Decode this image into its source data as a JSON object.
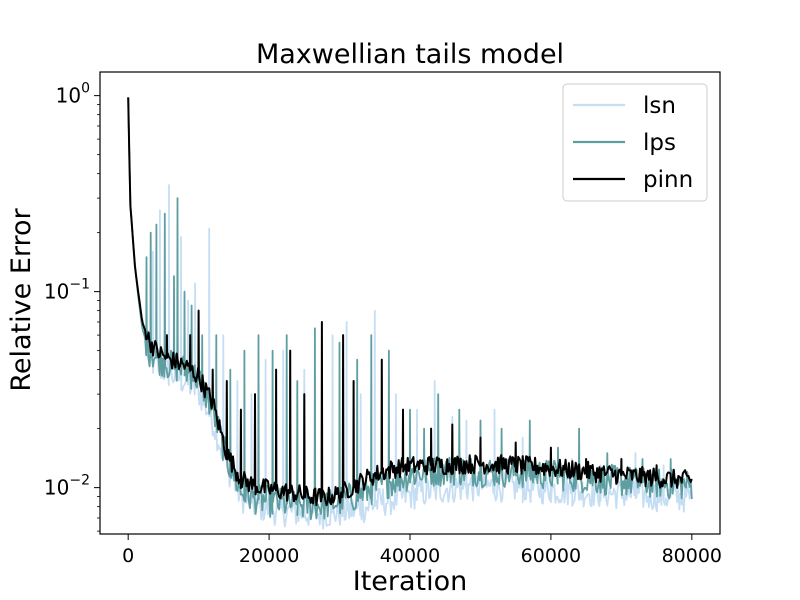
{
  "chart_data": {
    "type": "line",
    "title": "Maxwellian tails model",
    "xlabel": "Iteration",
    "ylabel": "Relative Error",
    "xlim": [
      -4000,
      84000
    ],
    "ylim": [
      0.0058,
      1.32
    ],
    "yscale": "log",
    "grid": false,
    "legend_position": "top-right",
    "xticks": [
      {
        "value": 0,
        "label": "0"
      },
      {
        "value": 20000,
        "label": "20000"
      },
      {
        "value": 40000,
        "label": "40000"
      },
      {
        "value": 60000,
        "label": "60000"
      },
      {
        "value": 80000,
        "label": "80000"
      }
    ],
    "yticks": [
      {
        "value": 0.01,
        "base": "10",
        "exp": "−2"
      },
      {
        "value": 0.1,
        "base": "10",
        "exp": "−1"
      },
      {
        "value": 1,
        "base": "10",
        "exp": "0"
      }
    ],
    "series": [
      {
        "name": "lsn",
        "color": "#c6def3",
        "x": [
          0,
          300,
          600,
          1000,
          1500,
          2000,
          2500,
          3000,
          4000,
          5000,
          6000,
          8000,
          10000,
          12000,
          14000,
          16000,
          18000,
          20000,
          22000,
          24000,
          26000,
          28000,
          30000,
          32000,
          34000,
          36000,
          38000,
          40000,
          42000,
          44000,
          46000,
          48000,
          50000,
          54000,
          58000,
          62000,
          66000,
          70000,
          74000,
          78000,
          80000
        ],
        "values": [
          0.98,
          0.28,
          0.2,
          0.13,
          0.09,
          0.065,
          0.055,
          0.045,
          0.042,
          0.04,
          0.038,
          0.035,
          0.031,
          0.022,
          0.013,
          0.009,
          0.0082,
          0.0078,
          0.0076,
          0.0075,
          0.0074,
          0.0074,
          0.0075,
          0.0077,
          0.008,
          0.0085,
          0.0088,
          0.0092,
          0.0095,
          0.0098,
          0.01,
          0.0101,
          0.0102,
          0.0101,
          0.0099,
          0.0097,
          0.0095,
          0.0093,
          0.0091,
          0.009,
          0.0089
        ],
        "spikes": [
          [
            3500,
            0.16
          ],
          [
            4500,
            0.26
          ],
          [
            5800,
            0.35
          ],
          [
            7500,
            0.19
          ],
          [
            8500,
            0.09
          ],
          [
            9500,
            0.11
          ],
          [
            11500,
            0.21
          ],
          [
            13500,
            0.06
          ],
          [
            15500,
            0.035
          ],
          [
            17500,
            0.03
          ],
          [
            19500,
            0.045
          ],
          [
            22000,
            0.05
          ],
          [
            25000,
            0.04
          ],
          [
            29000,
            0.06
          ],
          [
            31000,
            0.07
          ],
          [
            33000,
            0.03
          ],
          [
            35000,
            0.08
          ],
          [
            38000,
            0.03
          ],
          [
            41000,
            0.025
          ],
          [
            43500,
            0.035
          ],
          [
            46000,
            0.023
          ],
          [
            48000,
            0.022
          ],
          [
            52000,
            0.025
          ],
          [
            56000,
            0.018
          ],
          [
            60000,
            0.016
          ],
          [
            63000,
            0.014
          ],
          [
            67000,
            0.013
          ],
          [
            72000,
            0.015
          ],
          [
            76000,
            0.013
          ]
        ]
      },
      {
        "name": "lps",
        "color": "#5f9ea0",
        "x": [
          0,
          300,
          600,
          1000,
          1500,
          2000,
          2500,
          3000,
          4000,
          5000,
          6000,
          8000,
          10000,
          12000,
          14000,
          16000,
          18000,
          20000,
          22000,
          24000,
          26000,
          28000,
          30000,
          32000,
          34000,
          36000,
          38000,
          40000,
          42000,
          44000,
          46000,
          48000,
          50000,
          54000,
          58000,
          62000,
          66000,
          70000,
          74000,
          78000,
          80000
        ],
        "values": [
          0.98,
          0.28,
          0.2,
          0.13,
          0.09,
          0.065,
          0.057,
          0.05,
          0.046,
          0.044,
          0.042,
          0.04,
          0.036,
          0.025,
          0.014,
          0.0095,
          0.0088,
          0.0085,
          0.0083,
          0.0082,
          0.0081,
          0.0082,
          0.0085,
          0.009,
          0.0096,
          0.0103,
          0.011,
          0.0116,
          0.012,
          0.0122,
          0.0123,
          0.0122,
          0.0121,
          0.012,
          0.0118,
          0.0115,
          0.0111,
          0.0108,
          0.0106,
          0.0104,
          0.0103
        ],
        "spikes": [
          [
            2600,
            0.15
          ],
          [
            3200,
            0.2
          ],
          [
            4000,
            0.22
          ],
          [
            5200,
            0.25
          ],
          [
            6500,
            0.12
          ],
          [
            7000,
            0.3
          ],
          [
            8000,
            0.1
          ],
          [
            9000,
            0.085
          ],
          [
            10500,
            0.06
          ],
          [
            12500,
            0.06
          ],
          [
            14500,
            0.04
          ],
          [
            16500,
            0.05
          ],
          [
            18500,
            0.06
          ],
          [
            20500,
            0.05
          ],
          [
            22500,
            0.06
          ],
          [
            24000,
            0.035
          ],
          [
            26500,
            0.065
          ],
          [
            30000,
            0.055
          ],
          [
            32500,
            0.045
          ],
          [
            34500,
            0.06
          ],
          [
            37000,
            0.05
          ],
          [
            40000,
            0.025
          ],
          [
            42000,
            0.02
          ],
          [
            44000,
            0.03
          ],
          [
            47000,
            0.025
          ],
          [
            50000,
            0.022
          ],
          [
            53000,
            0.02
          ],
          [
            57000,
            0.022
          ],
          [
            61000,
            0.016
          ],
          [
            64000,
            0.02
          ],
          [
            68000,
            0.015
          ],
          [
            73000,
            0.014
          ],
          [
            77000,
            0.014
          ]
        ]
      },
      {
        "name": "pinn",
        "color": "#000000",
        "x": [
          0,
          300,
          600,
          1000,
          1500,
          2000,
          2500,
          3000,
          4000,
          5000,
          6000,
          8000,
          10000,
          12000,
          14000,
          16000,
          18000,
          20000,
          22000,
          24000,
          26000,
          28000,
          30000,
          32000,
          34000,
          36000,
          38000,
          40000,
          42000,
          44000,
          46000,
          48000,
          50000,
          54000,
          58000,
          62000,
          66000,
          70000,
          74000,
          78000,
          80000
        ],
        "values": [
          0.98,
          0.28,
          0.2,
          0.13,
          0.095,
          0.07,
          0.062,
          0.056,
          0.05,
          0.047,
          0.045,
          0.042,
          0.037,
          0.027,
          0.015,
          0.011,
          0.0102,
          0.0098,
          0.0096,
          0.0093,
          0.009,
          0.0089,
          0.0093,
          0.0102,
          0.0112,
          0.012,
          0.0126,
          0.0129,
          0.013,
          0.013,
          0.0131,
          0.0132,
          0.0132,
          0.0131,
          0.0128,
          0.0124,
          0.012,
          0.0116,
          0.0113,
          0.011,
          0.0109
        ],
        "spikes": [
          [
            5500,
            0.06
          ],
          [
            8800,
            0.06
          ],
          [
            10000,
            0.08
          ],
          [
            12000,
            0.04
          ],
          [
            14000,
            0.035
          ],
          [
            16000,
            0.025
          ],
          [
            18000,
            0.03
          ],
          [
            21000,
            0.04
          ],
          [
            23000,
            0.05
          ],
          [
            25000,
            0.03
          ],
          [
            27500,
            0.07
          ],
          [
            30500,
            0.06
          ],
          [
            32000,
            0.035
          ],
          [
            36000,
            0.045
          ],
          [
            39000,
            0.025
          ],
          [
            43000,
            0.02
          ],
          [
            46000,
            0.021
          ],
          [
            50000,
            0.018
          ],
          [
            55000,
            0.017
          ],
          [
            60000,
            0.016
          ],
          [
            65000,
            0.014
          ],
          [
            70000,
            0.014
          ],
          [
            75000,
            0.013
          ]
        ]
      }
    ]
  }
}
